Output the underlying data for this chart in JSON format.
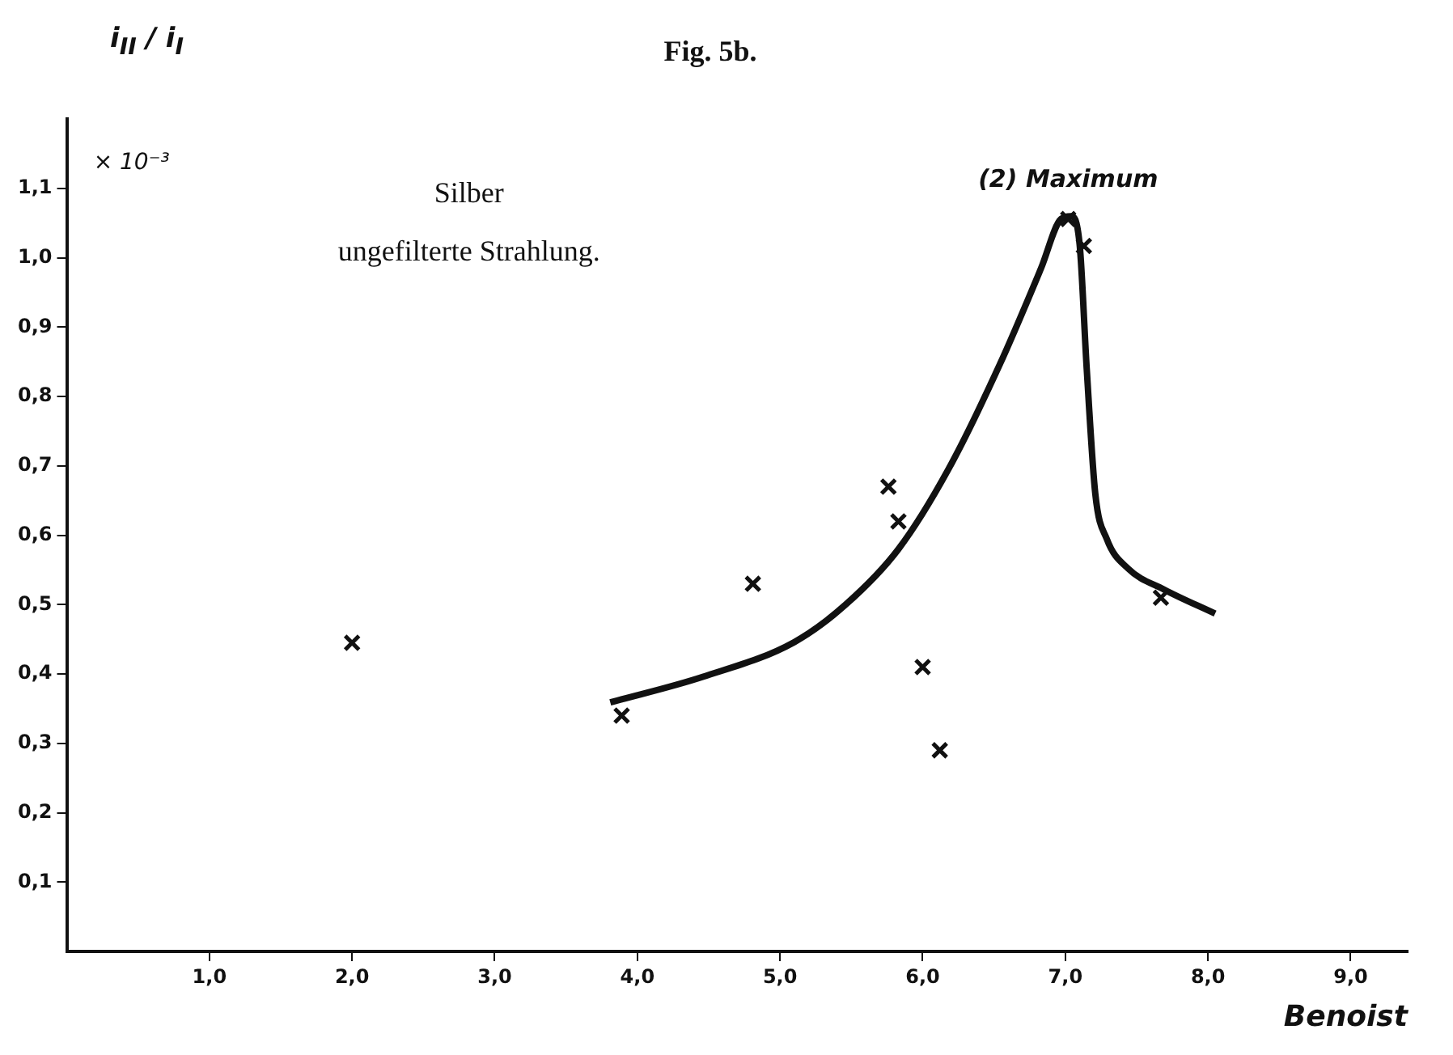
{
  "chart_data": {
    "type": "scatter",
    "title": "Fig. 5b.",
    "xlabel": "Benoist",
    "ylabel": "i$_{II}$ / i$_{I}$",
    "annotations": [
      "Silber",
      "ungefilterte Strahlung.",
      "× 10⁻³",
      {
        "text": "(2) Maximum",
        "x": 7.02,
        "y": 1.06
      }
    ],
    "xlim": [
      0,
      9.4
    ],
    "ylim": [
      0,
      1.2
    ],
    "xticks": [
      {
        "value": 1,
        "label": "1,0"
      },
      {
        "value": 2,
        "label": "2,0"
      },
      {
        "value": 3,
        "label": "3,0"
      },
      {
        "value": 4,
        "label": "4,0"
      },
      {
        "value": 5,
        "label": "5,0"
      },
      {
        "value": 6,
        "label": "6,0"
      },
      {
        "value": 7,
        "label": "7,0"
      },
      {
        "value": 8,
        "label": "8,0"
      },
      {
        "value": 9,
        "label": "9,0"
      }
    ],
    "yticks": [
      {
        "value": 0.1,
        "label": "0,1"
      },
      {
        "value": 0.2,
        "label": "0,2"
      },
      {
        "value": 0.3,
        "label": "0,3"
      },
      {
        "value": 0.4,
        "label": "0,4"
      },
      {
        "value": 0.5,
        "label": "0,5"
      },
      {
        "value": 0.6,
        "label": "0,6"
      },
      {
        "value": 0.7,
        "label": "0,7"
      },
      {
        "value": 0.8,
        "label": "0,8"
      },
      {
        "value": 0.9,
        "label": "0,9"
      },
      {
        "value": 1.0,
        "label": "1,0"
      },
      {
        "value": 1.1,
        "label": "1,1"
      }
    ],
    "grid": false,
    "legend": false,
    "marker": "cross",
    "series": [
      {
        "type": "scatter",
        "color": "#111111",
        "x": [
          2.0,
          3.89,
          4.81,
          5.76,
          5.83,
          6.0,
          6.12,
          7.02,
          7.13,
          7.67
        ],
        "values": [
          0.445,
          0.34,
          0.53,
          0.67,
          0.62,
          0.41,
          0.29,
          1.056,
          1.017,
          0.51
        ]
      },
      {
        "type": "line",
        "color": "#111111",
        "marker": "none",
        "x": [
          3.81,
          4.46,
          5.1,
          5.46,
          5.83,
          6.18,
          6.54,
          6.83,
          6.97,
          7.04,
          7.1,
          7.15,
          7.21,
          7.29,
          7.44,
          7.69,
          8.05
        ],
        "values": [
          0.359,
          0.396,
          0.446,
          0.5,
          0.58,
          0.695,
          0.846,
          0.985,
          1.056,
          1.06,
          1.02,
          0.84,
          0.66,
          0.595,
          0.552,
          0.522,
          0.487
        ]
      }
    ]
  }
}
